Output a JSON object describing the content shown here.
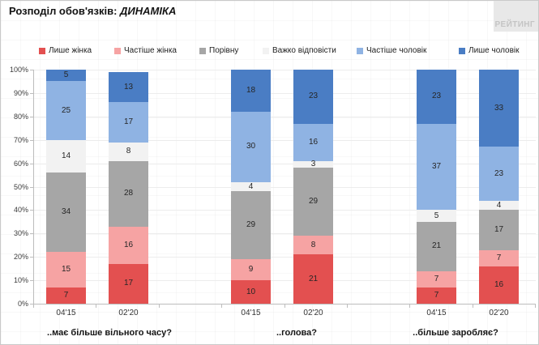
{
  "title": {
    "prefix": "Розподіл обов'язків: ",
    "emphasis": "ДИНАМІКА"
  },
  "logo_text": "РЕЙТИНГ",
  "y_axis": {
    "tick_labels": [
      "100%",
      "90%",
      "80%",
      "70%",
      "60%",
      "50%",
      "40%",
      "30%",
      "20%",
      "10%",
      "0%"
    ]
  },
  "chart_data": {
    "type": "bar",
    "stacked": true,
    "units": "percent",
    "ylim": [
      0,
      100
    ],
    "grid": "horizontal-faint",
    "legend_position": "top",
    "title": "Розподіл обов'язків: ДИНАМІКА",
    "series": [
      {
        "name": "Лише жінка",
        "color": "#e35050"
      },
      {
        "name": "Частіше жінка",
        "color": "#f6a3a3"
      },
      {
        "name": "Порівну",
        "color": "#a6a6a6"
      },
      {
        "name": "Важко відповісти",
        "color": "#f2f2f2"
      },
      {
        "name": "Частіше чоловік",
        "color": "#8fb3e3"
      },
      {
        "name": "Лише чоловік",
        "color": "#4a7dc4"
      }
    ],
    "groups": [
      {
        "label": "..має більше вільного часу?",
        "bars": [
          {
            "x_label": "04'15",
            "values": [
              7,
              15,
              34,
              14,
              25,
              5
            ]
          },
          {
            "x_label": "02'20",
            "values": [
              17,
              16,
              28,
              8,
              17,
              13
            ]
          }
        ]
      },
      {
        "label": "..голова?",
        "bars": [
          {
            "x_label": "04'15",
            "values": [
              10,
              9,
              29,
              4,
              30,
              18
            ]
          },
          {
            "x_label": "02'20",
            "values": [
              21,
              8,
              29,
              3,
              16,
              23
            ]
          }
        ]
      },
      {
        "label": "..більше заробляє?",
        "bars": [
          {
            "x_label": "04'15",
            "values": [
              7,
              7,
              21,
              5,
              37,
              23
            ]
          },
          {
            "x_label": "02'20",
            "values": [
              16,
              7,
              17,
              4,
              23,
              33
            ]
          }
        ]
      }
    ]
  }
}
